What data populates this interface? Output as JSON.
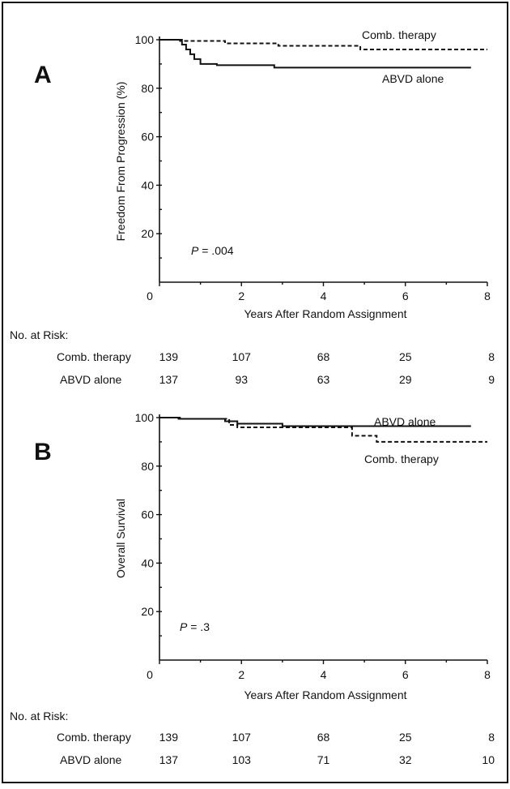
{
  "charts": [
    {
      "panel": "A",
      "ylabel": "Freedom From Progression (%)",
      "xlabel": "Years After Random Assignment",
      "pvalue_symbol": "P",
      "pvalue_text": " = .004",
      "risk_heading": "No. at Risk:",
      "series": [
        {
          "label": "Comb. therapy",
          "style": "dashed",
          "risk_name": "Comb. therapy"
        },
        {
          "label": "ABVD alone",
          "style": "solid",
          "risk_name": "ABVD alone"
        }
      ]
    },
    {
      "panel": "B",
      "ylabel": "Overall Survival",
      "xlabel": "Years After Random Assignment",
      "pvalue_symbol": "P",
      "pvalue_text": " = .3",
      "risk_heading": "No. at Risk:",
      "series": [
        {
          "label": "Comb. therapy",
          "style": "dashed",
          "risk_name": "Comb.  therapy"
        },
        {
          "label": "ABVD alone",
          "style": "solid",
          "risk_name": "ABVD alone"
        }
      ]
    }
  ],
  "chart_data": [
    {
      "type": "line",
      "title": "A",
      "xlabel": "Years After Random Assignment",
      "ylabel": "Freedom From Progression (%)",
      "xlim": [
        0,
        8
      ],
      "ylim": [
        0,
        100
      ],
      "xticks": [
        0,
        2,
        4,
        6,
        8
      ],
      "yticks": [
        20,
        40,
        60,
        80,
        100
      ],
      "series": [
        {
          "name": "Comb. therapy",
          "line": "dashed",
          "x": [
            0.0,
            0.5,
            0.5,
            1.6,
            1.6,
            2.9,
            2.9,
            4.9,
            4.9,
            8.0
          ],
          "y": [
            100,
            100,
            99.5,
            99.5,
            98.5,
            98.5,
            97.5,
            97.5,
            96,
            96
          ]
        },
        {
          "name": "ABVD alone",
          "line": "solid",
          "x": [
            0.0,
            0.55,
            0.55,
            0.65,
            0.65,
            0.75,
            0.75,
            0.85,
            0.85,
            1.0,
            1.0,
            1.4,
            1.4,
            2.8,
            2.8,
            7.6
          ],
          "y": [
            100,
            100,
            98,
            98,
            96,
            96,
            94,
            94,
            92,
            92,
            90,
            90,
            89.5,
            89.5,
            88.5,
            88.5
          ]
        }
      ],
      "risk_table": {
        "times": [
          0,
          2,
          4,
          6,
          8
        ],
        "rows": [
          {
            "name": "Comb. therapy",
            "values": [
              "139",
              "107",
              "68",
              "25",
              "8"
            ]
          },
          {
            "name": "ABVD alone",
            "values": [
              "137",
              "93",
              "63",
              "29",
              "9"
            ]
          }
        ]
      }
    },
    {
      "type": "line",
      "title": "B",
      "xlabel": "Years After Random Assignment",
      "ylabel": "Overall Survival",
      "xlim": [
        0,
        8
      ],
      "ylim": [
        0,
        100
      ],
      "xticks": [
        0,
        2,
        4,
        6,
        8
      ],
      "yticks": [
        20,
        40,
        60,
        80,
        100
      ],
      "series": [
        {
          "name": "Comb. therapy",
          "line": "dashed",
          "x": [
            0.0,
            0.4,
            0.4,
            1.7,
            1.7,
            1.9,
            1.9,
            4.7,
            4.7,
            5.3,
            5.3,
            8.0
          ],
          "y": [
            100,
            100,
            99.5,
            99.5,
            97,
            97,
            96,
            96,
            92.5,
            92.5,
            90,
            90
          ]
        },
        {
          "name": "ABVD alone",
          "line": "solid",
          "x": [
            0.0,
            0.5,
            0.5,
            1.6,
            1.6,
            1.9,
            1.9,
            3.0,
            3.0,
            7.6
          ],
          "y": [
            100,
            100,
            99.5,
            99.5,
            98.5,
            98.5,
            97.5,
            97.5,
            96.5,
            96.5
          ]
        }
      ],
      "risk_table": {
        "times": [
          0,
          2,
          4,
          6,
          8
        ],
        "rows": [
          {
            "name": "Comb.  therapy",
            "values": [
              "139",
              "107",
              "68",
              "25",
              "8"
            ]
          },
          {
            "name": "ABVD alone",
            "values": [
              "137",
              "103",
              "71",
              "32",
              "10"
            ]
          }
        ]
      }
    }
  ]
}
